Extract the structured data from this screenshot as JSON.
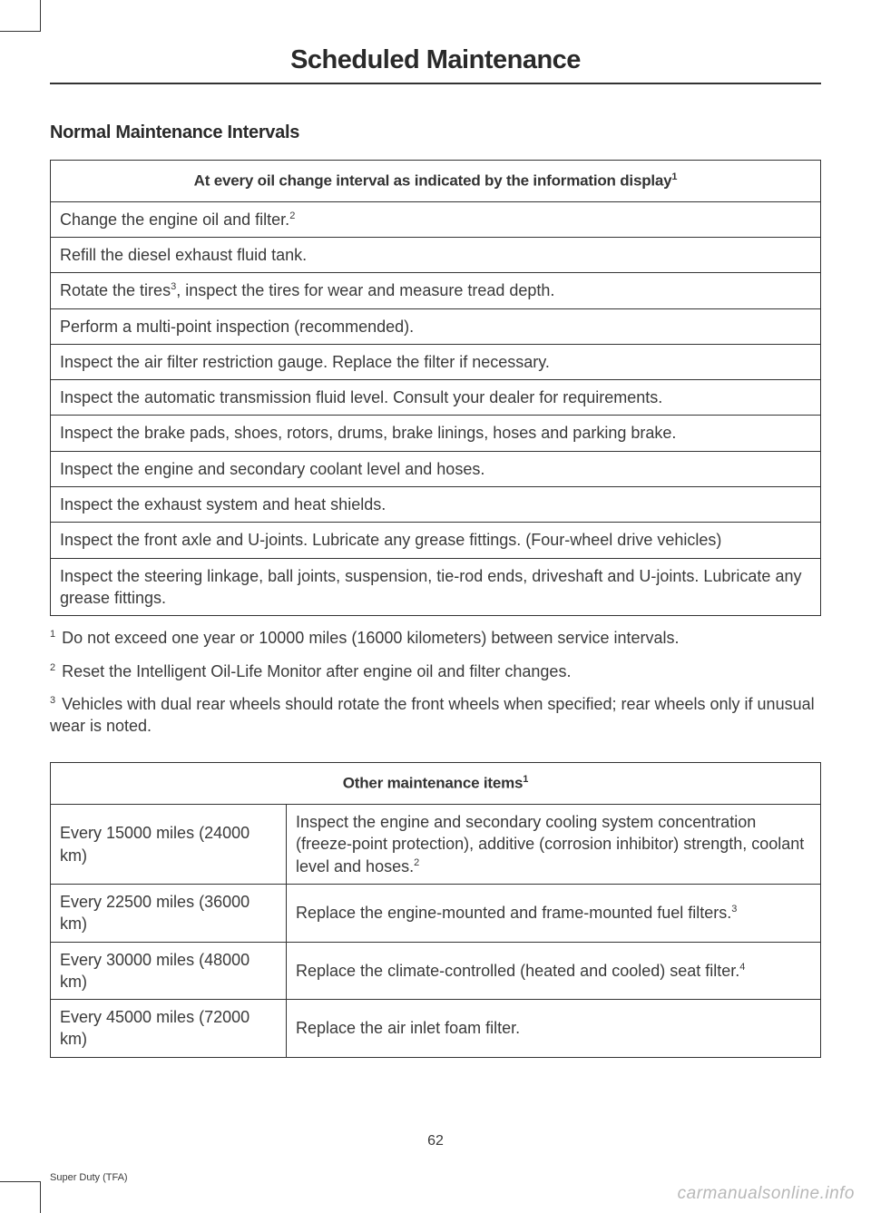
{
  "page_title": "Scheduled Maintenance",
  "section_heading": "Normal Maintenance Intervals",
  "table1": {
    "header": "At every oil change interval as indicated by the information display",
    "header_sup": "1",
    "rows": [
      {
        "text": "Change the engine oil and filter.",
        "sup": "2"
      },
      {
        "text": "Refill the diesel exhaust fluid tank."
      },
      {
        "text_pre": "Rotate the tires",
        "sup_inline": "3",
        "text_post": ", inspect the tires for wear and measure tread depth."
      },
      {
        "text": "Perform a multi-point inspection (recommended)."
      },
      {
        "text": "Inspect the air filter restriction gauge. Replace the filter if necessary."
      },
      {
        "text": "Inspect the automatic transmission fluid level. Consult your dealer for requirements."
      },
      {
        "text": "Inspect the brake pads, shoes, rotors, drums, brake linings, hoses and parking brake."
      },
      {
        "text": "Inspect the engine and secondary coolant level and hoses."
      },
      {
        "text": "Inspect the exhaust system and heat shields."
      },
      {
        "text": "Inspect the front axle and U-joints. Lubricate any grease fittings. (Four-wheel drive vehicles)"
      },
      {
        "text": "Inspect the steering linkage, ball joints, suspension, tie-rod ends, driveshaft and U-joints. Lubricate any grease fittings."
      }
    ]
  },
  "footnotes1": [
    {
      "num": "1",
      "text": "Do not exceed one year or 10000 miles (16000 kilometers) between service intervals."
    },
    {
      "num": "2",
      "text": "Reset the Intelligent Oil-Life Monitor after engine oil and filter changes."
    },
    {
      "num": "3",
      "text": "Vehicles with dual rear wheels should rotate the front wheels when specified; rear wheels only if unusual wear is noted."
    }
  ],
  "table2": {
    "header": "Other maintenance items",
    "header_sup": "1",
    "rows": [
      {
        "interval": "Every 15000 miles (24000 km)",
        "task": "Inspect the engine and secondary cooling system concentration (freeze-point protection), additive (corrosion inhibitor) strength, coolant level and hoses.",
        "sup": "2"
      },
      {
        "interval": "Every 22500 miles (36000 km)",
        "task": "Replace the engine-mounted and frame-mounted fuel filters.",
        "sup": "3"
      },
      {
        "interval": "Every 30000 miles (48000 km)",
        "task": "Replace the climate-controlled (heated and cooled) seat filter.",
        "sup": "4"
      },
      {
        "interval": "Every 45000 miles (72000 km)",
        "task": "Replace the air inlet foam filter."
      }
    ]
  },
  "page_number": "62",
  "footer_model": "Super Duty (TFA)",
  "watermark": "carmanualsonline.info"
}
